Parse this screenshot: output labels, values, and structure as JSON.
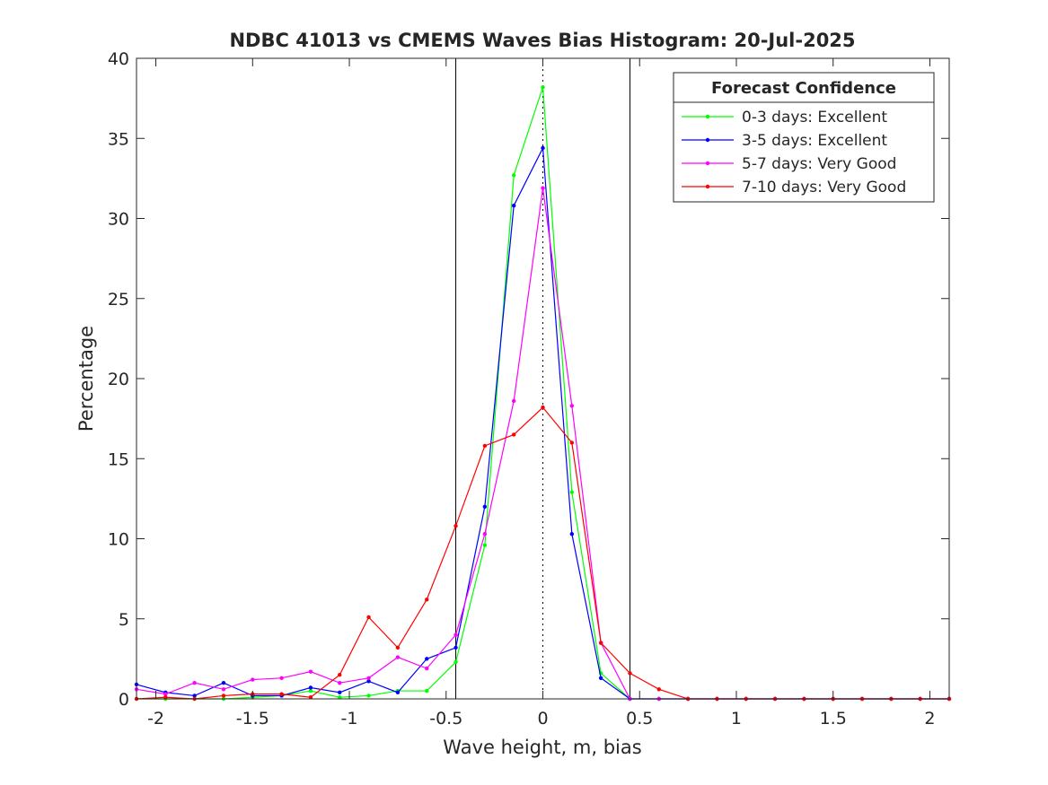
{
  "chart_data": {
    "type": "line",
    "title": "NDBC 41013 vs CMEMS Waves Bias Histogram: 20-Jul-2025",
    "xlabel": "Wave height, m, bias",
    "ylabel": "Percentage",
    "xlim": [
      -2.1,
      2.1
    ],
    "ylim": [
      0,
      40
    ],
    "xticks": [
      -2,
      -1.5,
      -1,
      -0.5,
      0,
      0.5,
      1,
      1.5,
      2
    ],
    "xtick_labels": [
      "-2",
      "-1.5",
      "-1",
      "-0.5",
      "0",
      "0.5",
      "1",
      "1.5",
      "2"
    ],
    "yticks": [
      0,
      5,
      10,
      15,
      20,
      25,
      30,
      35,
      40
    ],
    "ytick_labels": [
      "0",
      "5",
      "10",
      "15",
      "20",
      "25",
      "30",
      "35",
      "40"
    ],
    "grid": false,
    "reference_lines": {
      "solid_x": [
        -0.45,
        0.45
      ],
      "dotted_x": [
        0
      ]
    },
    "legend": {
      "title": "Forecast Confidence",
      "placement": "top-right"
    },
    "x": [
      -2.1,
      -1.95,
      -1.8,
      -1.65,
      -1.5,
      -1.35,
      -1.2,
      -1.05,
      -0.9,
      -0.75,
      -0.6,
      -0.45,
      -0.3,
      -0.15,
      0,
      0.15,
      0.3,
      0.45,
      0.6,
      0.75,
      0.9,
      1.05,
      1.2,
      1.35,
      1.5,
      1.65,
      1.8,
      1.95,
      2.1
    ],
    "series": [
      {
        "name": "0-3 days: Excellent",
        "color": "#00ff00",
        "values": [
          0,
          0,
          0,
          0,
          0.1,
          0.2,
          0.5,
          0.1,
          0.2,
          0.5,
          0.5,
          2.3,
          9.6,
          32.7,
          38.2,
          12.9,
          1.6,
          0,
          0,
          0,
          0,
          0,
          0,
          0,
          0,
          0,
          0,
          0,
          0
        ]
      },
      {
        "name": "3-5 days: Excellent",
        "color": "#0000ff",
        "values": [
          0.9,
          0.4,
          0.2,
          1.0,
          0.2,
          0.2,
          0.7,
          0.4,
          1.1,
          0.4,
          2.5,
          3.2,
          12.0,
          30.8,
          34.4,
          10.3,
          1.3,
          0,
          0,
          0,
          0,
          0,
          0,
          0,
          0,
          0,
          0,
          0,
          0
        ]
      },
      {
        "name": "5-7 days: Very Good",
        "color": "#ff00ff",
        "values": [
          0.6,
          0.3,
          1.0,
          0.6,
          1.2,
          1.3,
          1.7,
          1.0,
          1.3,
          2.6,
          1.9,
          4.0,
          10.3,
          18.6,
          31.9,
          18.3,
          3.5,
          0,
          0,
          0,
          0,
          0,
          0,
          0,
          0,
          0,
          0,
          0,
          0
        ]
      },
      {
        "name": "7-10 days: Very Good",
        "color": "#ff0000",
        "values": [
          0,
          0.1,
          0,
          0.2,
          0.3,
          0.3,
          0.1,
          1.5,
          5.1,
          3.2,
          6.2,
          10.8,
          15.8,
          16.5,
          18.2,
          16.0,
          3.5,
          1.6,
          0.6,
          0,
          0,
          0,
          0,
          0,
          0,
          0,
          0,
          0,
          0
        ]
      }
    ]
  }
}
